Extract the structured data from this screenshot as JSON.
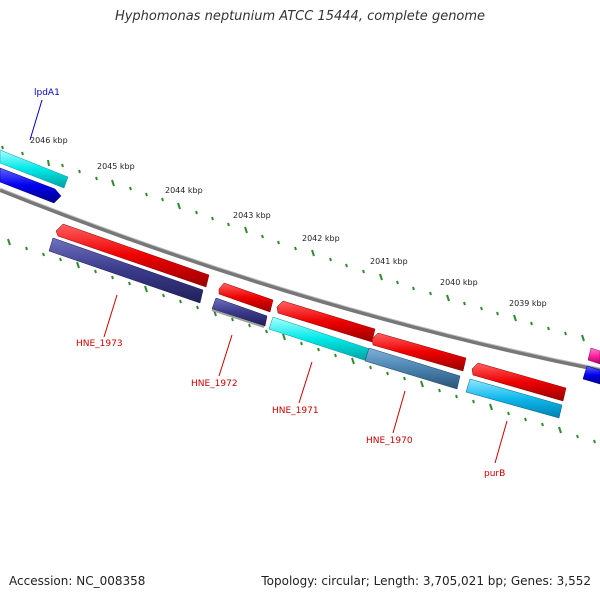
{
  "title": "Hyphomonas neptunium ATCC 15444, complete genome",
  "footer": {
    "accession": "Accession: NC_008358",
    "topology": "Topology: circular; Length: 3,705,021 bp; Genes: 3,552"
  },
  "colors": {
    "forward_gene": "#e00000",
    "reverse_gene_blue": "#0000ee",
    "cyan_gene": "#00e5e5",
    "backbone": "#808080",
    "tick": "#2e8b2e",
    "label_red": "#cc0000",
    "label_blue": "#0000cc"
  },
  "kbp_labels": [
    "2046 kbp",
    "2045 kbp",
    "2044 kbp",
    "2043 kbp",
    "2042 kbp",
    "2041 kbp",
    "2040 kbp",
    "2039 kbp"
  ],
  "gene_labels": [
    {
      "text": "lpdA1",
      "color": "#0000cc"
    },
    {
      "text": "HNE_1973",
      "color": "#cc0000"
    },
    {
      "text": "HNE_1972",
      "color": "#cc0000"
    },
    {
      "text": "HNE_1971",
      "color": "#cc0000"
    },
    {
      "text": "HNE_1970",
      "color": "#cc0000"
    },
    {
      "text": "purB",
      "color": "#cc0000"
    }
  ]
}
